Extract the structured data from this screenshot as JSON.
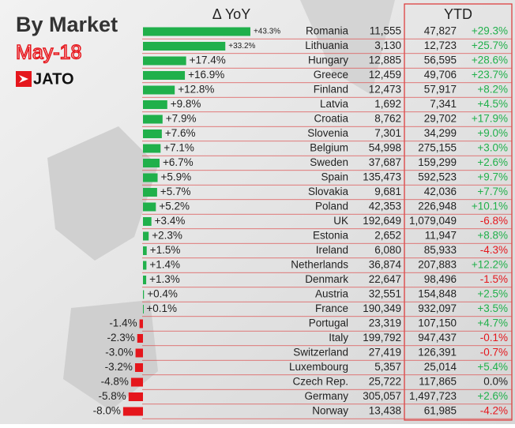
{
  "chart_data": {
    "type": "bar",
    "title": "By Market",
    "subtitle": "May-18",
    "logo": "JATO",
    "value_header": "Δ YoY",
    "ytd_header": "YTD",
    "positive_color": "#20b04b",
    "negative_color": "#e5161c",
    "categories": [
      "Romania",
      "Lithuania",
      "Hungary",
      "Greece",
      "Finland",
      "Latvia",
      "Croatia",
      "Slovenia",
      "Belgium",
      "Sweden",
      "Spain",
      "Slovakia",
      "Poland",
      "UK",
      "Estonia",
      "Ireland",
      "Netherlands",
      "Denmark",
      "Austria",
      "France",
      "Portugal",
      "Italy",
      "Switzerland",
      "Luxembourg",
      "Czech Rep.",
      "Germany",
      "Norway"
    ],
    "values": [
      43.3,
      33.2,
      17.4,
      16.9,
      12.8,
      9.8,
      7.9,
      7.6,
      7.1,
      6.7,
      5.9,
      5.7,
      5.2,
      3.4,
      2.3,
      1.5,
      1.4,
      1.3,
      0.4,
      0.1,
      -1.4,
      -2.3,
      -3.0,
      -3.2,
      -4.8,
      -5.8,
      -8.0
    ],
    "value_labels": [
      "+43.3%",
      "+33.2%",
      "+17.4%",
      "+16.9%",
      "+12.8%",
      "+9.8%",
      "+7.9%",
      "+7.6%",
      "+7.1%",
      "+6.7%",
      "+5.9%",
      "+5.7%",
      "+5.2%",
      "+3.4%",
      "+2.3%",
      "+1.5%",
      "+1.4%",
      "+1.3%",
      "+0.4%",
      "+0.1%",
      "-1.4%",
      "-2.3%",
      "-3.0%",
      "-3.2%",
      "-4.8%",
      "-5.8%",
      "-8.0%"
    ],
    "may_volume": [
      "11,555",
      "3,130",
      "12,885",
      "12,459",
      "12,473",
      "1,692",
      "8,762",
      "7,301",
      "54,998",
      "37,687",
      "135,473",
      "9,681",
      "42,353",
      "192,649",
      "2,652",
      "6,080",
      "36,874",
      "22,647",
      "32,551",
      "190,349",
      "23,319",
      "199,792",
      "27,419",
      "5,357",
      "25,722",
      "305,057",
      "13,438"
    ],
    "ytd_volume": [
      "47,827",
      "12,723",
      "56,595",
      "49,706",
      "57,917",
      "7,341",
      "29,702",
      "34,299",
      "275,155",
      "159,299",
      "592,523",
      "42,036",
      "226,948",
      "1,079,049",
      "11,947",
      "85,933",
      "207,883",
      "98,496",
      "154,848",
      "932,097",
      "107,150",
      "947,437",
      "126,391",
      "25,014",
      "117,865",
      "1,497,723",
      "61,985"
    ],
    "ytd_change": [
      29.3,
      25.7,
      28.6,
      23.7,
      8.2,
      4.5,
      17.9,
      9.0,
      3.0,
      2.6,
      9.7,
      7.7,
      10.1,
      -6.8,
      8.8,
      -4.3,
      12.2,
      -1.5,
      2.5,
      3.5,
      4.7,
      -0.1,
      -0.7,
      5.4,
      0.0,
      2.6,
      -4.2
    ],
    "ytd_change_labels": [
      "+29.3%",
      "+25.7%",
      "+28.6%",
      "+23.7%",
      "+8.2%",
      "+4.5%",
      "+17.9%",
      "+9.0%",
      "+3.0%",
      "+2.6%",
      "+9.7%",
      "+7.7%",
      "+10.1%",
      "-6.8%",
      "+8.8%",
      "-4.3%",
      "+12.2%",
      "-1.5%",
      "+2.5%",
      "+3.5%",
      "+4.7%",
      "-0.1%",
      "-0.7%",
      "+5.4%",
      "0.0%",
      "+2.6%",
      "-4.2%"
    ]
  }
}
